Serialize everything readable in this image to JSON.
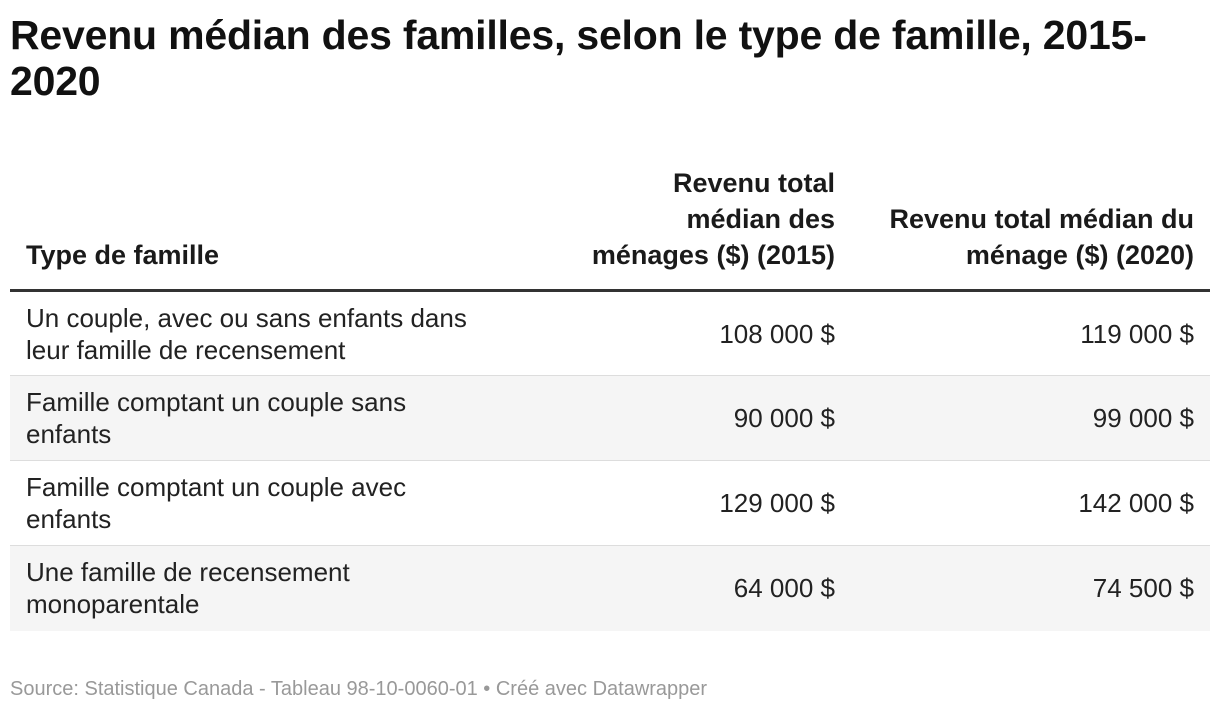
{
  "title": "Revenu médian des familles, selon le type de famille, 2015-2020",
  "table": {
    "headers": [
      "Type de famille",
      "Revenu total médian des ménages ($) (2015)",
      "Revenu total médian du ménage ($) (2020)"
    ],
    "rows": [
      [
        "Un couple, avec ou sans enfants dans leur famille de recensement",
        "108 000 $",
        "119 000 $"
      ],
      [
        "Famille comptant un couple sans enfants",
        "90 000 $",
        "99 000 $"
      ],
      [
        "Famille comptant un couple avec enfants",
        "129 000 $",
        "142 000 $"
      ],
      [
        "Une famille de recensement monoparentale",
        "64 000 $",
        "74 500 $"
      ]
    ]
  },
  "footer": {
    "source": "Source: Statistique Canada - Tableau 98-10-0060-01",
    "separator": " • ",
    "credit": "Créé avec Datawrapper"
  },
  "colors": {
    "header_rule": "#333333",
    "row_stripe": "#f5f5f5",
    "row_divider": "#dddddd",
    "source_text": "#999999"
  },
  "chart_data": {
    "type": "table",
    "title": "Revenu médian des familles, selon le type de famille, 2015-2020",
    "columns": [
      "Type de famille",
      "Revenu total médian des ménages ($) (2015)",
      "Revenu total médian du ménage ($) (2020)"
    ],
    "categories": [
      "Un couple, avec ou sans enfants dans leur famille de recensement",
      "Famille comptant un couple sans enfants",
      "Famille comptant un couple avec enfants",
      "Une famille de recensement monoparentale"
    ],
    "series": [
      {
        "name": "Revenu total médian des ménages ($) (2015)",
        "values": [
          108000,
          90000,
          129000,
          64000
        ]
      },
      {
        "name": "Revenu total médian du ménage ($) (2020)",
        "values": [
          119000,
          99000,
          142000,
          74500
        ]
      }
    ]
  }
}
